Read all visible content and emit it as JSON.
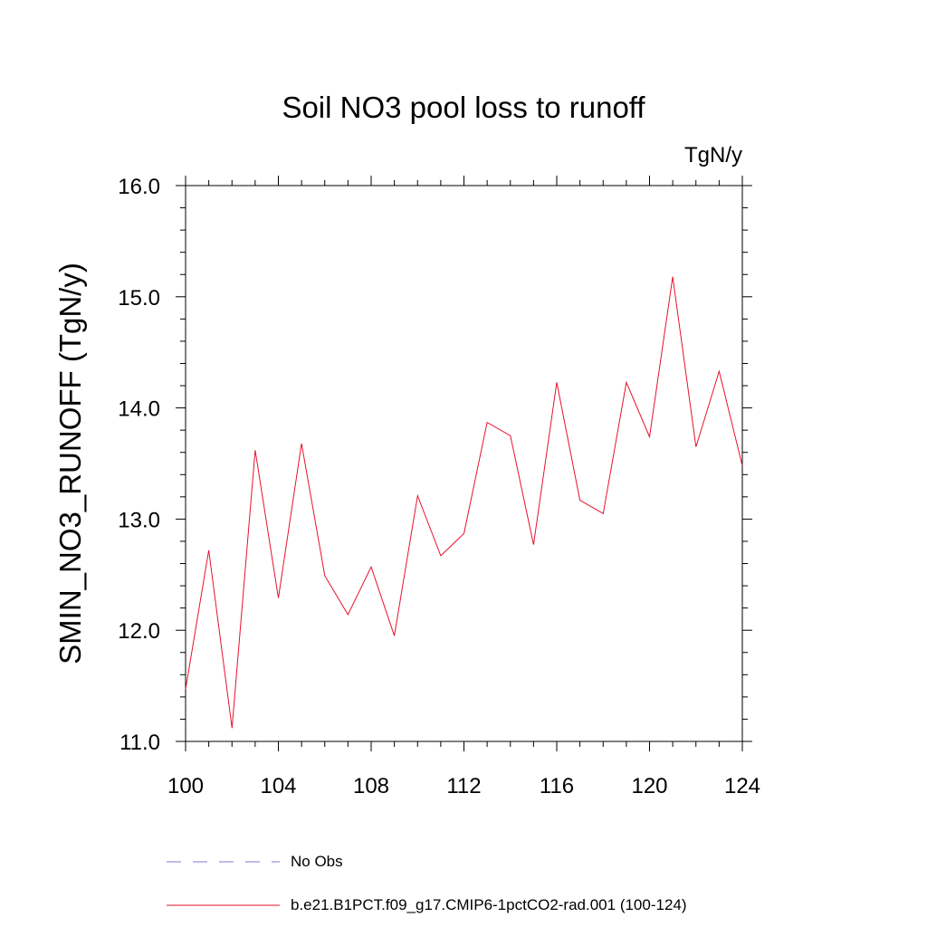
{
  "chart_data": {
    "type": "line",
    "title": "Soil NO3 pool loss to runoff",
    "units": "TgN/y",
    "ylabel": "SMIN_NO3_RUNOFF  (TgN/y)",
    "xlabel": "",
    "xlim": [
      100,
      124
    ],
    "ylim": [
      11.0,
      16.0
    ],
    "xticks": [
      100,
      104,
      108,
      112,
      116,
      120,
      124
    ],
    "yticks": [
      "11.0",
      "12.0",
      "13.0",
      "14.0",
      "15.0",
      "16.0"
    ],
    "series": [
      {
        "name": "b.e21.B1PCT.f09_g17.CMIP6-1pctCO2-rad.001 (100-124)",
        "color": "#e8112d",
        "x": [
          100,
          101,
          102,
          103,
          104,
          105,
          106,
          107,
          108,
          109,
          110,
          111,
          112,
          113,
          114,
          115,
          116,
          117,
          118,
          119,
          120,
          121,
          122,
          123,
          124
        ],
        "values": [
          11.47,
          12.72,
          11.12,
          13.62,
          12.29,
          13.68,
          12.49,
          12.14,
          12.57,
          11.95,
          13.21,
          12.67,
          12.87,
          13.87,
          13.75,
          12.77,
          14.23,
          13.17,
          13.05,
          14.23,
          13.74,
          15.18,
          13.65,
          14.33,
          13.48
        ]
      }
    ],
    "legend": [
      {
        "label": "No Obs",
        "style": "dashed",
        "color": "#7b7bd0"
      },
      {
        "label": "b.e21.B1PCT.f09_g17.CMIP6-1pctCO2-rad.001 (100-124)",
        "style": "solid",
        "color": "#e8112d"
      }
    ]
  }
}
